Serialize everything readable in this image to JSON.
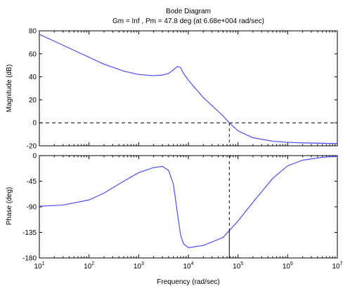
{
  "title": "Bode Diagram",
  "subtitle": "Gm = Inf ,  Pm = 47.8 deg (at 6.68e+004 rad/sec)",
  "chart_data": [
    {
      "type": "line",
      "ylabel": "Magnitude (dB)",
      "xscale": "log",
      "xlim": [
        10,
        10000000
      ],
      "ylim": [
        -20,
        80
      ],
      "yticks": [
        -20,
        0,
        20,
        40,
        60,
        80
      ],
      "reference_line": 0,
      "crossover_frequency": 66800,
      "series": [
        {
          "x": [
            10,
            20,
            50,
            100,
            200,
            500,
            1000,
            2000,
            3000,
            4000,
            5000,
            6000,
            7000,
            8000,
            10000,
            20000,
            50000,
            66800,
            100000,
            200000,
            500000,
            1000000,
            2000000,
            10000000
          ],
          "values": [
            77,
            71,
            63,
            57,
            51,
            45,
            42,
            41,
            41.5,
            43,
            46,
            49,
            48,
            43,
            37,
            22,
            6,
            0,
            -7,
            -13,
            -16,
            -17,
            -17.5,
            -18
          ]
        }
      ],
      "color": "#4a4aff"
    },
    {
      "type": "line",
      "ylabel": "Phase (deg)",
      "xlabel": "Frequency  (rad/sec)",
      "xscale": "log",
      "xlim": [
        10,
        10000000
      ],
      "ylim": [
        -180,
        0
      ],
      "yticks": [
        -180,
        -135,
        -90,
        -45,
        0
      ],
      "xticks": [
        "10^1",
        "10^2",
        "10^3",
        "10^4",
        "10^5",
        "10^6",
        "10^7"
      ],
      "phase_margin_frequency": 66800,
      "series": [
        {
          "x": [
            10,
            30,
            100,
            200,
            500,
            1000,
            2000,
            3000,
            4000,
            5000,
            6000,
            7000,
            8000,
            10000,
            20000,
            50000,
            66800,
            100000,
            200000,
            500000,
            1000000,
            2000000,
            5000000,
            10000000
          ],
          "values": [
            -89,
            -87,
            -78,
            -66,
            -45,
            -30,
            -21,
            -19,
            -26,
            -50,
            -100,
            -140,
            -155,
            -162,
            -158,
            -144,
            -132,
            -115,
            -82,
            -40,
            -18,
            -8,
            -3,
            -1
          ]
        }
      ],
      "color": "#4a4aff"
    }
  ]
}
